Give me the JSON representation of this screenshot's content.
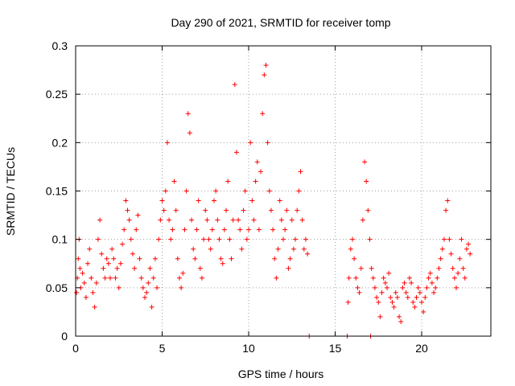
{
  "chart_data": {
    "type": "scatter",
    "title": "Day 290 of 2021, SRMTID for receiver tomp",
    "xlabel": "GPS time / hours",
    "ylabel": "SRMTID / TECUs",
    "xlim": [
      0,
      24
    ],
    "ylim": [
      0,
      0.3
    ],
    "xticks": [
      0,
      5,
      10,
      15,
      20
    ],
    "xtick_labels": [
      "0",
      "5",
      "10",
      "15",
      "20"
    ],
    "yticks": [
      0,
      0.05,
      0.1,
      0.15,
      0.2,
      0.25,
      0.3
    ],
    "ytick_labels": [
      "0",
      "0.05",
      "0.1",
      "0.15",
      "0.2",
      "0.25",
      "0.3"
    ],
    "grid": true,
    "marker": "plus",
    "color": "#ff0000",
    "series": [
      {
        "name": "SRMTID",
        "points": [
          [
            0.05,
            0.045
          ],
          [
            0.1,
            0.06
          ],
          [
            0.15,
            0.08
          ],
          [
            0.2,
            0.1
          ],
          [
            0.25,
            0.07
          ],
          [
            0.3,
            0.05
          ],
          [
            0.4,
            0.065
          ],
          [
            0.5,
            0.055
          ],
          [
            0.6,
            0.04
          ],
          [
            0.7,
            0.075
          ],
          [
            0.8,
            0.09
          ],
          [
            0.9,
            0.06
          ],
          [
            1.0,
            0.045
          ],
          [
            1.1,
            0.03
          ],
          [
            1.2,
            0.055
          ],
          [
            1.3,
            0.1
          ],
          [
            1.4,
            0.12
          ],
          [
            1.5,
            0.085
          ],
          [
            1.6,
            0.07
          ],
          [
            1.7,
            0.06
          ],
          [
            1.8,
            0.08
          ],
          [
            1.9,
            0.075
          ],
          [
            2.0,
            0.06
          ],
          [
            2.1,
            0.09
          ],
          [
            2.2,
            0.08
          ],
          [
            2.3,
            0.06
          ],
          [
            2.4,
            0.07
          ],
          [
            2.5,
            0.05
          ],
          [
            2.6,
            0.075
          ],
          [
            2.7,
            0.095
          ],
          [
            2.8,
            0.11
          ],
          [
            2.9,
            0.14
          ],
          [
            3.0,
            0.13
          ],
          [
            3.1,
            0.12
          ],
          [
            3.2,
            0.1
          ],
          [
            3.3,
            0.085
          ],
          [
            3.4,
            0.07
          ],
          [
            3.5,
            0.11
          ],
          [
            3.6,
            0.125
          ],
          [
            3.7,
            0.08
          ],
          [
            3.8,
            0.06
          ],
          [
            3.9,
            0.05
          ],
          [
            4.0,
            0.04
          ],
          [
            4.1,
            0.045
          ],
          [
            4.2,
            0.055
          ],
          [
            4.3,
            0.07
          ],
          [
            4.4,
            0.03
          ],
          [
            4.5,
            0.06
          ],
          [
            4.6,
            0.08
          ],
          [
            4.7,
            0.05
          ],
          [
            4.8,
            0.1
          ],
          [
            4.9,
            0.12
          ],
          [
            5.0,
            0.14
          ],
          [
            5.1,
            0.13
          ],
          [
            5.2,
            0.15
          ],
          [
            5.3,
            0.2
          ],
          [
            5.4,
            0.12
          ],
          [
            5.5,
            0.1
          ],
          [
            5.6,
            0.11
          ],
          [
            5.7,
            0.16
          ],
          [
            5.8,
            0.13
          ],
          [
            5.9,
            0.08
          ],
          [
            6.0,
            0.06
          ],
          [
            6.1,
            0.05
          ],
          [
            6.2,
            0.065
          ],
          [
            6.3,
            0.11
          ],
          [
            6.4,
            0.15
          ],
          [
            6.5,
            0.23
          ],
          [
            6.6,
            0.21
          ],
          [
            6.7,
            0.12
          ],
          [
            6.8,
            0.09
          ],
          [
            6.9,
            0.08
          ],
          [
            7.0,
            0.11
          ],
          [
            7.1,
            0.14
          ],
          [
            7.2,
            0.07
          ],
          [
            7.3,
            0.06
          ],
          [
            7.4,
            0.1
          ],
          [
            7.5,
            0.13
          ],
          [
            7.6,
            0.12
          ],
          [
            7.7,
            0.1
          ],
          [
            7.8,
            0.09
          ],
          [
            7.9,
            0.11
          ],
          [
            8.0,
            0.14
          ],
          [
            8.1,
            0.15
          ],
          [
            8.2,
            0.12
          ],
          [
            8.3,
            0.1
          ],
          [
            8.4,
            0.08
          ],
          [
            8.5,
            0.075
          ],
          [
            8.6,
            0.11
          ],
          [
            8.7,
            0.13
          ],
          [
            8.8,
            0.16
          ],
          [
            8.9,
            0.1
          ],
          [
            9.0,
            0.08
          ],
          [
            9.1,
            0.12
          ],
          [
            9.2,
            0.26
          ],
          [
            9.3,
            0.19
          ],
          [
            9.4,
            0.12
          ],
          [
            9.5,
            0.11
          ],
          [
            9.6,
            0.09
          ],
          [
            9.7,
            0.13
          ],
          [
            9.8,
            0.15
          ],
          [
            9.9,
            0.1
          ],
          [
            10.0,
            0.11
          ],
          [
            10.1,
            0.2
          ],
          [
            10.2,
            0.14
          ],
          [
            10.3,
            0.12
          ],
          [
            10.4,
            0.16
          ],
          [
            10.5,
            0.18
          ],
          [
            10.6,
            0.11
          ],
          [
            10.7,
            0.17
          ],
          [
            10.8,
            0.23
          ],
          [
            10.9,
            0.27
          ],
          [
            11.0,
            0.28
          ],
          [
            11.1,
            0.2
          ],
          [
            11.2,
            0.15
          ],
          [
            11.3,
            0.13
          ],
          [
            11.4,
            0.11
          ],
          [
            11.5,
            0.08
          ],
          [
            11.6,
            0.06
          ],
          [
            11.7,
            0.09
          ],
          [
            11.8,
            0.14
          ],
          [
            11.9,
            0.12
          ],
          [
            12.0,
            0.1
          ],
          [
            12.1,
            0.11
          ],
          [
            12.2,
            0.13
          ],
          [
            12.3,
            0.07
          ],
          [
            12.4,
            0.08
          ],
          [
            12.5,
            0.12
          ],
          [
            12.6,
            0.09
          ],
          [
            12.7,
            0.1
          ],
          [
            12.8,
            0.13
          ],
          [
            12.9,
            0.15
          ],
          [
            13.0,
            0.17
          ],
          [
            13.1,
            0.12
          ],
          [
            13.2,
            0.09
          ],
          [
            13.3,
            0.1
          ],
          [
            13.4,
            0.085
          ],
          [
            13.5,
            0.0
          ],
          [
            15.7,
            0.0
          ],
          [
            15.75,
            0.035
          ],
          [
            15.8,
            0.06
          ],
          [
            15.9,
            0.09
          ],
          [
            16.0,
            0.1
          ],
          [
            16.1,
            0.08
          ],
          [
            16.2,
            0.06
          ],
          [
            16.3,
            0.05
          ],
          [
            16.4,
            0.045
          ],
          [
            16.5,
            0.07
          ],
          [
            16.6,
            0.12
          ],
          [
            16.7,
            0.18
          ],
          [
            16.8,
            0.16
          ],
          [
            16.9,
            0.13
          ],
          [
            17.0,
            0.1
          ],
          [
            17.05,
            0.0
          ],
          [
            17.1,
            0.07
          ],
          [
            17.2,
            0.06
          ],
          [
            17.3,
            0.05
          ],
          [
            17.4,
            0.04
          ],
          [
            17.5,
            0.035
          ],
          [
            17.6,
            0.02
          ],
          [
            17.7,
            0.045
          ],
          [
            17.8,
            0.06
          ],
          [
            17.9,
            0.055
          ],
          [
            18.0,
            0.05
          ],
          [
            18.1,
            0.065
          ],
          [
            18.2,
            0.04
          ],
          [
            18.3,
            0.035
          ],
          [
            18.4,
            0.03
          ],
          [
            18.5,
            0.045
          ],
          [
            18.6,
            0.04
          ],
          [
            18.7,
            0.02
          ],
          [
            18.8,
            0.015
          ],
          [
            18.9,
            0.05
          ],
          [
            19.0,
            0.055
          ],
          [
            19.1,
            0.045
          ],
          [
            19.2,
            0.04
          ],
          [
            19.3,
            0.06
          ],
          [
            19.4,
            0.055
          ],
          [
            19.5,
            0.035
          ],
          [
            19.6,
            0.03
          ],
          [
            19.7,
            0.04
          ],
          [
            19.8,
            0.05
          ],
          [
            19.9,
            0.045
          ],
          [
            20.0,
            0.035
          ],
          [
            20.1,
            0.025
          ],
          [
            20.2,
            0.04
          ],
          [
            20.3,
            0.05
          ],
          [
            20.4,
            0.06
          ],
          [
            20.5,
            0.065
          ],
          [
            20.6,
            0.055
          ],
          [
            20.7,
            0.045
          ],
          [
            20.8,
            0.05
          ],
          [
            20.9,
            0.06
          ],
          [
            21.0,
            0.07
          ],
          [
            21.1,
            0.08
          ],
          [
            21.2,
            0.09
          ],
          [
            21.3,
            0.1
          ],
          [
            21.4,
            0.13
          ],
          [
            21.5,
            0.14
          ],
          [
            21.6,
            0.1
          ],
          [
            21.7,
            0.085
          ],
          [
            21.8,
            0.07
          ],
          [
            21.9,
            0.06
          ],
          [
            22.0,
            0.05
          ],
          [
            22.1,
            0.065
          ],
          [
            22.2,
            0.08
          ],
          [
            22.3,
            0.1
          ],
          [
            22.4,
            0.07
          ],
          [
            22.5,
            0.06
          ],
          [
            22.6,
            0.09
          ],
          [
            22.7,
            0.095
          ],
          [
            22.8,
            0.085
          ]
        ]
      }
    ]
  }
}
